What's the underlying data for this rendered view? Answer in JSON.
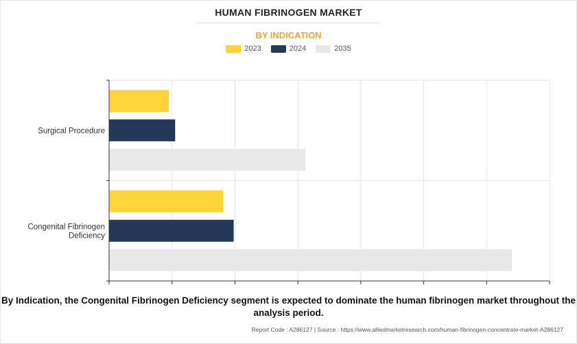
{
  "header": {
    "title": "HUMAN FIBRINOGEN MARKET",
    "subtitle": "BY INDICATION"
  },
  "legend": [
    {
      "label": "2023",
      "color": "#FFD43B"
    },
    {
      "label": "2024",
      "color": "#253858"
    },
    {
      "label": "2035",
      "color": "#E8E8E8"
    }
  ],
  "chart_data": {
    "type": "bar",
    "orientation": "horizontal",
    "categories": [
      "Surgical Procedure",
      "Congenital Fibrinogen Deficiency"
    ],
    "series": [
      {
        "name": "2023",
        "color": "#FFD43B",
        "values": [
          95,
          181
        ]
      },
      {
        "name": "2024",
        "color": "#253858",
        "values": [
          105,
          198
        ]
      },
      {
        "name": "2035",
        "color": "#E8E8E8",
        "values": [
          312,
          640
        ]
      }
    ],
    "xlim": [
      0,
      700
    ],
    "x_gridlines": [
      100,
      200,
      300,
      400,
      500,
      600,
      700
    ],
    "grid": true,
    "legend_position": "top-center"
  },
  "footer": {
    "summary": "By Indication, the Congenital Fibrinogen Deficiency segment is expected to dominate the human fibrinogen market throughout the analysis period.",
    "source": "Report Code : A286127  |  Source : https://www.alliedmarketresearch.com/human-fibrinogen-concentrate-market-A286127"
  }
}
